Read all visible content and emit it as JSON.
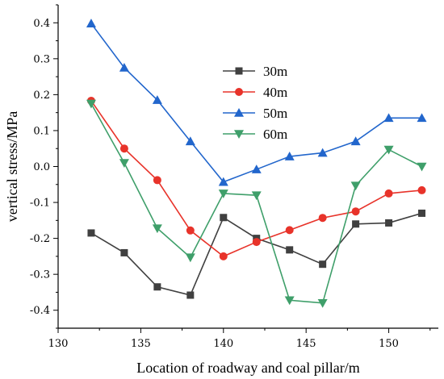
{
  "chart_data": {
    "type": "line",
    "title": "",
    "xlabel": "Location of roadway and coal pillar/m",
    "ylabel": "vertical stress/MPa",
    "xlim": [
      130,
      153
    ],
    "ylim": [
      -0.45,
      0.45
    ],
    "xticks": [
      130,
      135,
      140,
      145,
      150
    ],
    "xtick_labels": [
      "130",
      "135",
      "140",
      "145",
      "150"
    ],
    "yticks": [
      -0.4,
      -0.3,
      -0.2,
      -0.1,
      0.0,
      0.1,
      0.2,
      0.3,
      0.4
    ],
    "ytick_labels": [
      "-0.4",
      "-0.3",
      "-0.2",
      "-0.1",
      "0.0",
      "0.1",
      "0.2",
      "0.3",
      "0.4"
    ],
    "grid": false,
    "legend_position": "upper-center",
    "x": [
      132,
      134,
      136,
      138,
      140,
      142,
      144,
      146,
      148,
      150,
      152
    ],
    "series": [
      {
        "name": "30m",
        "color": "#404040",
        "marker": "square",
        "values": [
          -0.185,
          -0.24,
          -0.335,
          -0.358,
          -0.142,
          -0.2,
          -0.232,
          -0.272,
          -0.16,
          -0.157,
          -0.13
        ]
      },
      {
        "name": "40m",
        "color": "#e8332a",
        "marker": "circle",
        "values": [
          0.183,
          0.05,
          -0.038,
          -0.178,
          -0.25,
          -0.21,
          -0.177,
          -0.143,
          -0.125,
          -0.075,
          -0.066
        ]
      },
      {
        "name": "50m",
        "color": "#2266cc",
        "marker": "triangle-up",
        "values": [
          0.398,
          0.275,
          0.185,
          0.07,
          -0.043,
          -0.008,
          0.028,
          0.038,
          0.07,
          0.135,
          0.135
        ]
      },
      {
        "name": "60m",
        "color": "#3f9f6a",
        "marker": "triangle-down",
        "values": [
          0.175,
          0.01,
          -0.172,
          -0.253,
          -0.075,
          -0.08,
          -0.372,
          -0.38,
          -0.053,
          0.047,
          0.0
        ]
      }
    ]
  }
}
